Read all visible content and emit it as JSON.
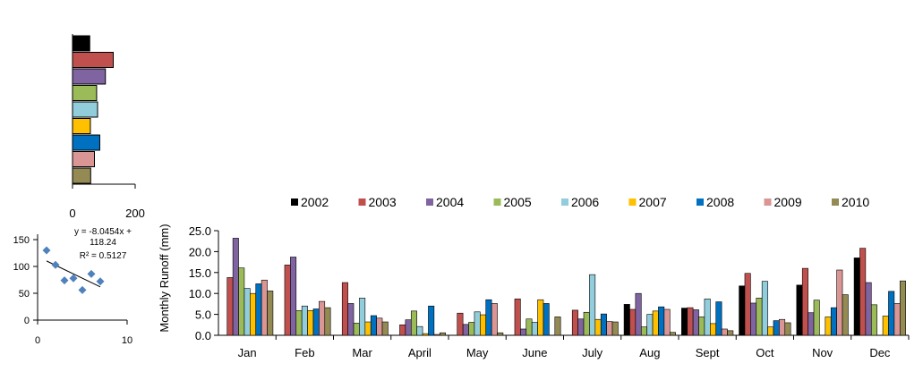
{
  "chart_data": [
    {
      "type": "bar",
      "orientation": "horizontal",
      "xlim": [
        0,
        200
      ],
      "ticks": [
        "0",
        "200"
      ],
      "values": [
        55,
        130,
        105,
        77,
        80,
        57,
        87,
        70,
        58
      ],
      "colors": [
        "#000000",
        "#c0504d",
        "#8064a2",
        "#9bbb59",
        "#92cddc",
        "#ffc000",
        "#0070c0",
        "#d99694",
        "#948a54"
      ]
    },
    {
      "type": "scatter",
      "xlim": [
        0,
        10
      ],
      "ylim": [
        0,
        150
      ],
      "xticks": [
        "0",
        "10"
      ],
      "yticks": [
        "150",
        "100",
        "50",
        "0"
      ],
      "points": [
        [
          1,
          130
        ],
        [
          2,
          103
        ],
        [
          3,
          74
        ],
        [
          4,
          78
        ],
        [
          5,
          56
        ],
        [
          6,
          86
        ],
        [
          7,
          72
        ]
      ],
      "trendline": {
        "slope": -8.0454,
        "intercept": 118.24
      },
      "equation_lines": [
        "y = -8.0454x +",
        "118.24",
        "R² = 0.5127"
      ],
      "marker_color": "#4f81bd"
    },
    {
      "type": "bar",
      "ylabel": "Monthly  Runoff (mm)",
      "ylim": [
        0,
        25
      ],
      "yticks": [
        "25.0",
        "20.0",
        "15.0",
        "10.0",
        "5.0",
        "0.0"
      ],
      "categories": [
        "Jan",
        "Feb",
        "Mar",
        "April",
        "May",
        "June",
        "July",
        "Aug",
        "Sept",
        "Oct",
        "Nov",
        "Dec"
      ],
      "legend_position": "top",
      "series": [
        {
          "name": "2002",
          "color": "#000000",
          "values": [
            0,
            0,
            0,
            0,
            0,
            0,
            0,
            7.4,
            6.5,
            11.8,
            12.0,
            18.5
          ]
        },
        {
          "name": "2003",
          "color": "#c0504d",
          "values": [
            13.8,
            16.8,
            12.6,
            2.5,
            5.3,
            8.7,
            6.0,
            6.2,
            6.6,
            14.8,
            16.0,
            20.8
          ]
        },
        {
          "name": "2004",
          "color": "#8064a2",
          "values": [
            23.2,
            18.7,
            7.6,
            3.7,
            2.6,
            1.5,
            3.9,
            10.0,
            6.1,
            7.7,
            5.4,
            12.6
          ]
        },
        {
          "name": "2005",
          "color": "#9bbb59",
          "values": [
            16.1,
            5.9,
            2.9,
            5.8,
            3.1,
            3.9,
            5.5,
            2.0,
            4.4,
            8.9,
            8.4,
            7.3
          ]
        },
        {
          "name": "2006",
          "color": "#92cddc",
          "values": [
            11.2,
            7.0,
            8.9,
            2.1,
            5.6,
            3.1,
            14.5,
            5.0,
            8.7,
            12.9,
            0,
            0
          ]
        },
        {
          "name": "2007",
          "color": "#ffc000",
          "values": [
            10.0,
            5.9,
            3.2,
            0.4,
            4.9,
            8.5,
            3.8,
            5.8,
            2.8,
            2.0,
            4.4,
            4.6
          ]
        },
        {
          "name": "2008",
          "color": "#0070c0",
          "values": [
            12.3,
            6.3,
            4.7,
            7.0,
            8.5,
            7.6,
            5.1,
            6.8,
            8.0,
            3.5,
            6.6,
            10.5
          ]
        },
        {
          "name": "2009",
          "color": "#d99694",
          "values": [
            13.2,
            8.1,
            4.1,
            0.2,
            7.6,
            0,
            3.3,
            6.2,
            1.5,
            3.8,
            15.6,
            7.6
          ]
        },
        {
          "name": "2010",
          "color": "#948a54",
          "values": [
            10.6,
            6.6,
            3.2,
            0.6,
            0.6,
            4.4,
            3.2,
            0.7,
            1.1,
            3.0,
            9.7,
            13.0
          ]
        }
      ]
    }
  ]
}
